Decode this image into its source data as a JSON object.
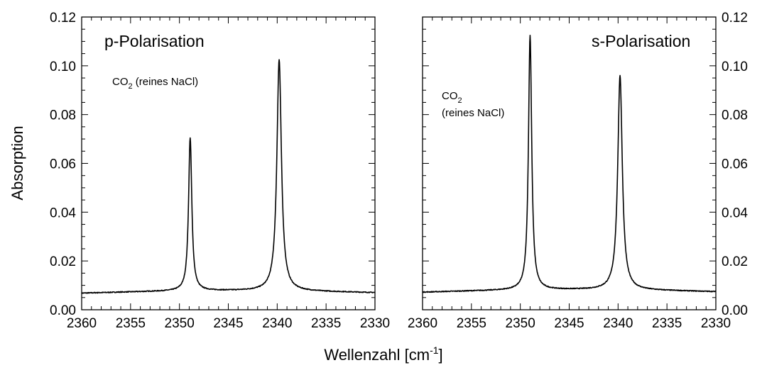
{
  "chart_data": [
    {
      "type": "line",
      "title": "p-Polarisation",
      "annotation": {
        "prefix": "CO",
        "sub": "2",
        "suffix": " (reines NaCl)"
      },
      "xlabel": {
        "main": "Wellenzahl [cm",
        "sup": "-1",
        "end": "]"
      },
      "ylabel": "Absorption",
      "xlim": [
        2360,
        2330
      ],
      "ylim": [
        0,
        0.12
      ],
      "xticks": [
        "2360",
        "2355",
        "2350",
        "2345",
        "2340",
        "2335",
        "2330"
      ],
      "yticks": [
        "0.00",
        "0.02",
        "0.04",
        "0.06",
        "0.08",
        "0.10",
        "0.12"
      ],
      "grid": false,
      "baseline": {
        "start": 0.0068,
        "end": 0.007,
        "mid": 0.0078
      },
      "peaks": [
        {
          "center": 2348.9,
          "height": 0.0705,
          "width": 0.2
        },
        {
          "center": 2339.8,
          "height": 0.1025,
          "width": 0.28
        }
      ]
    },
    {
      "type": "line",
      "title": "s-Polarisation",
      "annotation": {
        "prefix": "CO",
        "sub": "2",
        "line2": "(reines NaCl)"
      },
      "ylabel": "",
      "xlim": [
        2360,
        2330
      ],
      "ylim": [
        0,
        0.12
      ],
      "xticks": [
        "2360",
        "2355",
        "2350",
        "2345",
        "2340",
        "2335",
        "2330"
      ],
      "yticks": [
        "0.00",
        "0.02",
        "0.04",
        "0.06",
        "0.08",
        "0.10",
        "0.12"
      ],
      "grid": false,
      "baseline": {
        "start": 0.0072,
        "end": 0.0074,
        "mid": 0.0082
      },
      "peaks": [
        {
          "center": 2349.0,
          "height": 0.1125,
          "width": 0.2
        },
        {
          "center": 2339.8,
          "height": 0.096,
          "width": 0.28
        }
      ]
    }
  ]
}
